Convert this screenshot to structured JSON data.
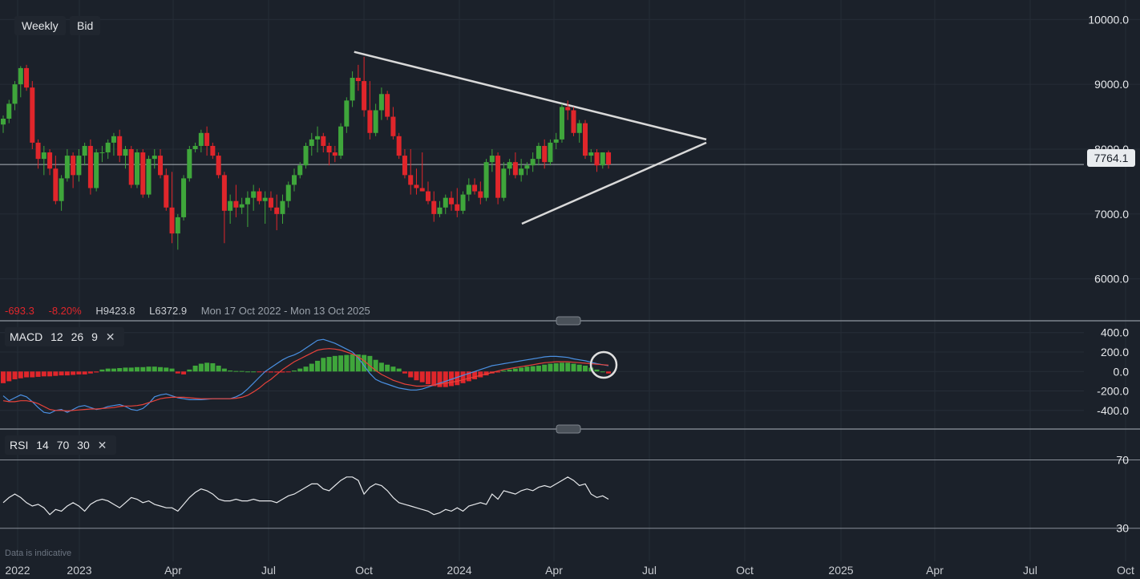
{
  "toolbar": {
    "interval": "Weekly",
    "side": "Bid"
  },
  "last_price": "7764.1",
  "stats": {
    "change": "-693.3",
    "change_pct": "-8.20%",
    "high_label": "H",
    "high": "9423.8",
    "low_label": "L",
    "low": "6372.9",
    "range": "Mon 17 Oct 2022 - Mon 13 Oct 2025"
  },
  "macd_label": {
    "name": "MACD",
    "p1": "12",
    "p2": "26",
    "p3": "9"
  },
  "rsi_label": {
    "name": "RSI",
    "p1": "14",
    "p2": "70",
    "p3": "30"
  },
  "footnote": "Data is indicative",
  "colors": {
    "up": "#3fa63b",
    "down": "#e0262b",
    "background": "#1b212a",
    "macd_line": "#4a90e2",
    "signal_line": "#e8423a",
    "trendline": "#d9d9d9"
  },
  "chart_data": {
    "type": "candlestick",
    "title": "",
    "price_axis": {
      "ticks": [
        10000,
        9000,
        8000,
        7000,
        6000
      ],
      "tick_labels": [
        "10000.0",
        "9000.0",
        "8000.0",
        "7000.0",
        "6000.0"
      ],
      "range": [
        5700,
        10300
      ]
    },
    "time_axis": {
      "labels": [
        "2022",
        "2023",
        "Apr",
        "Jul",
        "Oct",
        "2024",
        "Apr",
        "Jul",
        "Oct",
        "2025",
        "Apr",
        "Jul",
        "Oct"
      ]
    },
    "candles": [
      [
        8380,
        8520,
        8250,
        8470
      ],
      [
        8470,
        8760,
        8400,
        8700
      ],
      [
        8700,
        9050,
        8600,
        9000
      ],
      [
        9000,
        9280,
        8800,
        9250
      ],
      [
        9250,
        9300,
        8900,
        8950
      ],
      [
        8950,
        9050,
        8000,
        8100
      ],
      [
        8100,
        8150,
        7700,
        7850
      ],
      [
        7850,
        8050,
        7600,
        7950
      ],
      [
        7950,
        8000,
        7600,
        7700
      ],
      [
        7700,
        7900,
        7150,
        7200
      ],
      [
        7200,
        7600,
        7050,
        7550
      ],
      [
        7550,
        8000,
        7500,
        7900
      ],
      [
        7900,
        7950,
        7400,
        7600
      ],
      [
        7600,
        8000,
        7500,
        7900
      ],
      [
        7900,
        8100,
        7750,
        8050
      ],
      [
        8050,
        8150,
        7300,
        7400
      ],
      [
        7400,
        8000,
        7350,
        7950
      ],
      [
        7950,
        8050,
        7800,
        7950
      ],
      [
        7950,
        8150,
        7850,
        8100
      ],
      [
        8100,
        8250,
        7900,
        8200
      ],
      [
        8200,
        8300,
        7800,
        7900
      ],
      [
        7900,
        8050,
        7700,
        8000
      ],
      [
        8000,
        8050,
        7400,
        7450
      ],
      [
        7450,
        8000,
        7400,
        7950
      ],
      [
        7950,
        8000,
        7250,
        7300
      ],
      [
        7300,
        7900,
        7250,
        7850
      ],
      [
        7850,
        8000,
        7700,
        7900
      ],
      [
        7900,
        8000,
        7550,
        7600
      ],
      [
        7600,
        7700,
        7050,
        7100
      ],
      [
        7100,
        7650,
        6550,
        6700
      ],
      [
        6700,
        7000,
        6450,
        6950
      ],
      [
        6950,
        7600,
        6900,
        7550
      ],
      [
        7550,
        8050,
        7500,
        8000
      ],
      [
        8000,
        8100,
        7950,
        8050
      ],
      [
        8050,
        8300,
        7950,
        8250
      ],
      [
        8250,
        8350,
        7900,
        8050
      ],
      [
        8050,
        8100,
        7850,
        7900
      ],
      [
        7900,
        7950,
        7550,
        7600
      ],
      [
        7600,
        7650,
        6550,
        7050
      ],
      [
        7050,
        7300,
        6850,
        7200
      ],
      [
        7200,
        7450,
        6950,
        7100
      ],
      [
        7100,
        7250,
        7000,
        7150
      ],
      [
        7150,
        7350,
        6800,
        7250
      ],
      [
        7250,
        7450,
        7050,
        7350
      ],
      [
        7350,
        7400,
        7150,
        7200
      ],
      [
        7200,
        7350,
        6850,
        7250
      ],
      [
        7250,
        7350,
        7050,
        7100
      ],
      [
        7100,
        7300,
        6750,
        7000
      ],
      [
        7000,
        7300,
        6850,
        7200
      ],
      [
        7200,
        7500,
        7100,
        7450
      ],
      [
        7450,
        7700,
        7350,
        7600
      ],
      [
        7600,
        7800,
        7550,
        7750
      ],
      [
        7750,
        8100,
        7700,
        8050
      ],
      [
        8050,
        8250,
        7900,
        8150
      ],
      [
        8150,
        8350,
        7950,
        8200
      ],
      [
        8200,
        8250,
        7950,
        8050
      ],
      [
        8050,
        8100,
        7750,
        7950
      ],
      [
        7950,
        8050,
        7800,
        7900
      ],
      [
        7900,
        8400,
        7850,
        8350
      ],
      [
        8350,
        8800,
        8250,
        8750
      ],
      [
        8750,
        9200,
        8650,
        9100
      ],
      [
        9100,
        9300,
        8900,
        9050
      ],
      [
        9050,
        9423.8,
        8500,
        8600
      ],
      [
        8600,
        9050,
        8150,
        8250
      ],
      [
        8250,
        8700,
        8200,
        8600
      ],
      [
        8600,
        8950,
        8450,
        8850
      ],
      [
        8850,
        8900,
        8450,
        8500
      ],
      [
        8500,
        8650,
        8150,
        8200
      ],
      [
        8200,
        8250,
        7850,
        7900
      ],
      [
        7900,
        8000,
        7550,
        7600
      ],
      [
        7600,
        8000,
        7300,
        7450
      ],
      [
        7450,
        7700,
        7300,
        7400
      ],
      [
        7400,
        7950,
        7350,
        7350
      ],
      [
        7350,
        7500,
        7150,
        7200
      ],
      [
        7200,
        7350,
        6880,
        7000
      ],
      [
        7000,
        7200,
        6950,
        7100
      ],
      [
        7100,
        7300,
        7000,
        7250
      ],
      [
        7250,
        7350,
        7050,
        7150
      ],
      [
        7150,
        7400,
        6950,
        7050
      ],
      [
        7050,
        7350,
        7000,
        7300
      ],
      [
        7300,
        7550,
        7200,
        7450
      ],
      [
        7450,
        7550,
        7300,
        7350
      ],
      [
        7350,
        7500,
        7150,
        7250
      ],
      [
        7250,
        7850,
        7200,
        7800
      ],
      [
        7800,
        8000,
        7650,
        7900
      ],
      [
        7900,
        7950,
        7150,
        7250
      ],
      [
        7250,
        7800,
        7200,
        7700
      ],
      [
        7700,
        7850,
        7600,
        7800
      ],
      [
        7800,
        7950,
        7550,
        7600
      ],
      [
        7600,
        7850,
        7500,
        7700
      ],
      [
        7700,
        7800,
        7600,
        7750
      ],
      [
        7750,
        7950,
        7650,
        7850
      ],
      [
        7850,
        8100,
        7750,
        8050
      ],
      [
        8050,
        8150,
        7700,
        7800
      ],
      [
        7800,
        8150,
        7750,
        8100
      ],
      [
        8100,
        8250,
        8000,
        8150
      ],
      [
        8150,
        8700,
        8100,
        8650
      ],
      [
        8650,
        8750,
        8450,
        8600
      ],
      [
        8600,
        8650,
        8200,
        8250
      ],
      [
        8250,
        8450,
        8100,
        8400
      ],
      [
        8400,
        8450,
        7850,
        7900
      ],
      [
        7900,
        8000,
        7800,
        7950
      ],
      [
        7950,
        8000,
        7650,
        7750
      ],
      [
        7750,
        7950,
        7700,
        7950
      ],
      [
        7950,
        7980,
        7700,
        7764.1
      ]
    ],
    "trendlines": [
      [
        [
          9,
          9500
        ],
        [
          18,
          8150
        ]
      ],
      [
        [
          13.3,
          6850
        ],
        [
          18,
          8100
        ]
      ]
    ],
    "macd": {
      "scale_ticks": [
        400,
        200,
        0,
        -200,
        -400
      ],
      "scale_labels": [
        "400.0",
        "200.0",
        "0.0",
        "-200.0",
        "-400.0"
      ],
      "range": [
        -550,
        480
      ],
      "histogram": [
        -120,
        -100,
        -80,
        -70,
        -60,
        -60,
        -55,
        -50,
        -50,
        -45,
        -40,
        -40,
        -35,
        -30,
        -30,
        -20,
        -10,
        20,
        30,
        30,
        35,
        40,
        40,
        45,
        45,
        50,
        50,
        45,
        40,
        30,
        -20,
        -30,
        20,
        60,
        80,
        90,
        85,
        60,
        30,
        10,
        5,
        5,
        0,
        0,
        -5,
        -5,
        -10,
        -10,
        -10,
        -5,
        10,
        30,
        50,
        80,
        110,
        140,
        150,
        160,
        165,
        170,
        175,
        175,
        170,
        160,
        120,
        90,
        70,
        50,
        30,
        -20,
        -60,
        -90,
        -110,
        -130,
        -150,
        -160,
        -160,
        -150,
        -140,
        -120,
        -100,
        -80,
        -60,
        -40,
        -20,
        -10,
        10,
        20,
        30,
        40,
        50,
        55,
        60,
        70,
        80,
        85,
        90,
        90,
        80,
        70,
        60,
        40,
        20,
        0,
        -20
      ],
      "macd_line": [
        -250,
        -300,
        -270,
        -240,
        -260,
        -310,
        -370,
        -420,
        -430,
        -400,
        -390,
        -420,
        -390,
        -360,
        -350,
        -370,
        -390,
        -380,
        -360,
        -350,
        -340,
        -360,
        -390,
        -400,
        -380,
        -330,
        -260,
        -240,
        -230,
        -250,
        -270,
        -280,
        -290,
        -290,
        -290,
        -285,
        -280,
        -280,
        -280,
        -280,
        -260,
        -230,
        -180,
        -120,
        -60,
        0,
        40,
        80,
        120,
        150,
        170,
        200,
        240,
        280,
        320,
        330,
        310,
        290,
        260,
        230,
        200,
        140,
        60,
        -20,
        -80,
        -110,
        -130,
        -150,
        -170,
        -180,
        -190,
        -190,
        -180,
        -160,
        -140,
        -120,
        -100,
        -80,
        -60,
        -40,
        -20,
        0,
        20,
        40,
        60,
        70,
        80,
        90,
        100,
        110,
        120,
        130,
        140,
        150,
        155,
        155,
        150,
        145,
        130,
        120,
        110,
        95,
        80,
        70,
        60
      ],
      "signal_line": [
        -300,
        -310,
        -310,
        -300,
        -300,
        -310,
        -330,
        -360,
        -390,
        -400,
        -400,
        -405,
        -400,
        -395,
        -390,
        -385,
        -385,
        -380,
        -375,
        -370,
        -360,
        -355,
        -355,
        -350,
        -340,
        -320,
        -300,
        -280,
        -270,
        -265,
        -265,
        -265,
        -270,
        -275,
        -280,
        -280,
        -280,
        -280,
        -280,
        -280,
        -275,
        -265,
        -245,
        -210,
        -170,
        -120,
        -80,
        -30,
        20,
        60,
        100,
        130,
        160,
        190,
        220,
        230,
        235,
        230,
        220,
        200,
        180,
        150,
        110,
        60,
        10,
        -30,
        -60,
        -90,
        -110,
        -130,
        -140,
        -150,
        -150,
        -145,
        -140,
        -130,
        -120,
        -110,
        -100,
        -85,
        -70,
        -55,
        -40,
        -25,
        -10,
        5,
        20,
        30,
        40,
        50,
        60,
        70,
        80,
        90,
        95,
        100,
        100,
        100,
        95,
        90,
        85,
        80,
        75,
        70,
        65
      ]
    },
    "rsi": {
      "levels": [
        70,
        30
      ],
      "range": [
        20,
        82
      ],
      "values": [
        45,
        48,
        50,
        48,
        45,
        43,
        44,
        42,
        38,
        41,
        40,
        43,
        45,
        43,
        40,
        44,
        46,
        47,
        46,
        44,
        42,
        45,
        48,
        47,
        45,
        46,
        44,
        43,
        42,
        42,
        40,
        44,
        48,
        51,
        53,
        52,
        50,
        47,
        46,
        46,
        47,
        46,
        46,
        47,
        46,
        46,
        46,
        45,
        47,
        49,
        50,
        52,
        54,
        56,
        56,
        53,
        52,
        55,
        58,
        60,
        60,
        58,
        50,
        54,
        56,
        55,
        52,
        48,
        45,
        44,
        43,
        42,
        41,
        40,
        38,
        39,
        41,
        40,
        42,
        40,
        43,
        44,
        45,
        44,
        50,
        47,
        52,
        51,
        50,
        52,
        53,
        52,
        54,
        55,
        54,
        56,
        58,
        60,
        58,
        55,
        56,
        50,
        48,
        49,
        47
      ]
    }
  }
}
